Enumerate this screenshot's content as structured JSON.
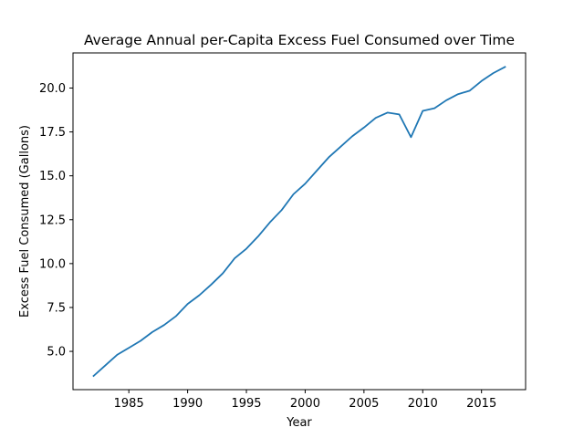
{
  "chart_data": {
    "type": "line",
    "title": "Average Annual per-Capita Excess Fuel Consumed over Time",
    "xlabel": "Year",
    "ylabel": "Excess Fuel Consumed (Gallons)",
    "xlim": [
      1980.25,
      2018.75
    ],
    "ylim": [
      2.82,
      22.0
    ],
    "xticks": [
      1985,
      1990,
      1995,
      2000,
      2005,
      2010,
      2015
    ],
    "xtick_labels": [
      "1985",
      "1990",
      "1995",
      "2000",
      "2005",
      "2010",
      "2015"
    ],
    "yticks": [
      5.0,
      7.5,
      10.0,
      12.5,
      15.0,
      17.5,
      20.0
    ],
    "ytick_labels": [
      "5.0",
      "7.5",
      "10.0",
      "12.5",
      "15.0",
      "17.5",
      "20.0"
    ],
    "grid": false,
    "color": "#1f77b4",
    "x": [
      1982,
      1983,
      1984,
      1985,
      1986,
      1987,
      1988,
      1989,
      1990,
      1991,
      1992,
      1993,
      1994,
      1995,
      1996,
      1997,
      1998,
      1999,
      2000,
      2001,
      2002,
      2003,
      2004,
      2005,
      2006,
      2007,
      2008,
      2009,
      2010,
      2011,
      2012,
      2013,
      2014,
      2015,
      2016,
      2017
    ],
    "series": [
      {
        "values": [
          3.6,
          4.2,
          4.8,
          5.2,
          5.6,
          6.1,
          6.5,
          7.0,
          7.7,
          8.2,
          8.8,
          9.45,
          10.3,
          10.85,
          11.55,
          12.35,
          13.05,
          13.95,
          14.55,
          15.3,
          16.05,
          16.65,
          17.25,
          17.75,
          18.3,
          18.6,
          18.5,
          17.2,
          18.7,
          18.85,
          19.3,
          19.65,
          19.85,
          20.4,
          20.85,
          21.2
        ]
      }
    ]
  }
}
